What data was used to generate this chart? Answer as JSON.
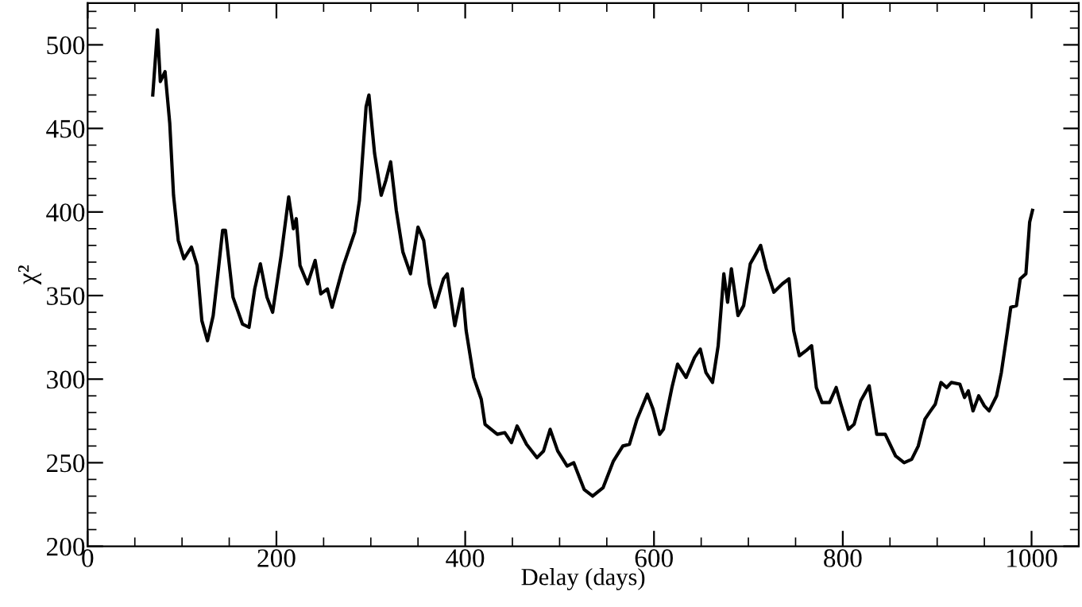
{
  "chart_data": {
    "type": "line",
    "xlabel": "Delay (days)",
    "ylabel": "χ²",
    "color": "#000000",
    "line_style": "solid",
    "marker": "none",
    "grid": false,
    "legend": false,
    "xlim": [
      0,
      1050
    ],
    "ylim": [
      200,
      525
    ],
    "xticks": [
      0,
      200,
      400,
      600,
      800,
      1000
    ],
    "yticks": [
      200,
      250,
      300,
      350,
      400,
      450,
      500
    ],
    "x": [
      69,
      74,
      77,
      82,
      87,
      91,
      96,
      102,
      110,
      116,
      121,
      127,
      133,
      138,
      143,
      146,
      154,
      164,
      171,
      177,
      183,
      190,
      196,
      205,
      213,
      218,
      221,
      225,
      233,
      241,
      247,
      254,
      259,
      271,
      283,
      288,
      295,
      298,
      304,
      311,
      316,
      321,
      327,
      334,
      342,
      350,
      356,
      362,
      368,
      377,
      381,
      389,
      397,
      401,
      409,
      417,
      421,
      434,
      442,
      449,
      455,
      465,
      476,
      483,
      490,
      498,
      508,
      515,
      526,
      535,
      546,
      557,
      567,
      574,
      582,
      593,
      599,
      606,
      610,
      619,
      625,
      634,
      643,
      649,
      655,
      662,
      668,
      674,
      678,
      682,
      689,
      695,
      702,
      713,
      719,
      727,
      736,
      743,
      748,
      754,
      761,
      767,
      772,
      778,
      786,
      793,
      798,
      806,
      812,
      819,
      828,
      836,
      845,
      856,
      865,
      873,
      880,
      887,
      893,
      898,
      904,
      910,
      915,
      924,
      929,
      933,
      938,
      944,
      950,
      955,
      963,
      968,
      974,
      978,
      984,
      988,
      994,
      998,
      1001
    ],
    "values": [
      470,
      509,
      478,
      484,
      453,
      410,
      383,
      372,
      379,
      368,
      335,
      323,
      338,
      363,
      389,
      389,
      349,
      333,
      331,
      354,
      369,
      349,
      340,
      374,
      409,
      390,
      396,
      368,
      357,
      371,
      351,
      354,
      343,
      368,
      388,
      407,
      463,
      470,
      435,
      410,
      419,
      430,
      401,
      376,
      363,
      391,
      383,
      357,
      343,
      360,
      363,
      332,
      354,
      329,
      301,
      288,
      273,
      267,
      268,
      262,
      272,
      261,
      253,
      257,
      270,
      257,
      248,
      250,
      234,
      230,
      235,
      251,
      260,
      261,
      276,
      291,
      282,
      267,
      270,
      295,
      309,
      301,
      313,
      318,
      304,
      298,
      320,
      363,
      346,
      366,
      338,
      344,
      369,
      380,
      366,
      352,
      357,
      360,
      329,
      314,
      317,
      320,
      295,
      286,
      286,
      295,
      285,
      270,
      273,
      287,
      296,
      267,
      267,
      254,
      250,
      252,
      260,
      276,
      281,
      285,
      298,
      295,
      298,
      297,
      289,
      293,
      281,
      290,
      284,
      281,
      290,
      304,
      327,
      343,
      344,
      360,
      363,
      394,
      401
    ]
  }
}
